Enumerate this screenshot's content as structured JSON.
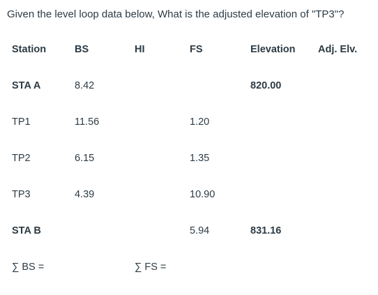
{
  "question": "Given the level loop data below, What is the adjusted elevation of \"TP3\"?",
  "headers": {
    "station": "Station",
    "bs": "BS",
    "hi": "HI",
    "fs": "FS",
    "elevation": "Elevation",
    "adj_elv": "Adj. Elv."
  },
  "rows": [
    {
      "station": "STA A",
      "bs": "8.42",
      "hi": "",
      "fs": "",
      "elevation": "820.00",
      "adj_elv": ""
    },
    {
      "station": "TP1",
      "bs": "11.56",
      "hi": "",
      "fs": "1.20",
      "elevation": "",
      "adj_elv": ""
    },
    {
      "station": "TP2",
      "bs": "6.15",
      "hi": "",
      "fs": "1.35",
      "elevation": "",
      "adj_elv": ""
    },
    {
      "station": "TP3",
      "bs": "4.39",
      "hi": "",
      "fs": "10.90",
      "elevation": "",
      "adj_elv": ""
    },
    {
      "station": "STA B",
      "bs": "",
      "hi": "",
      "fs": "5.94",
      "elevation": "831.16",
      "adj_elv": ""
    }
  ],
  "sums": {
    "bs_label": "∑ BS =",
    "fs_label": "∑ FS ="
  }
}
